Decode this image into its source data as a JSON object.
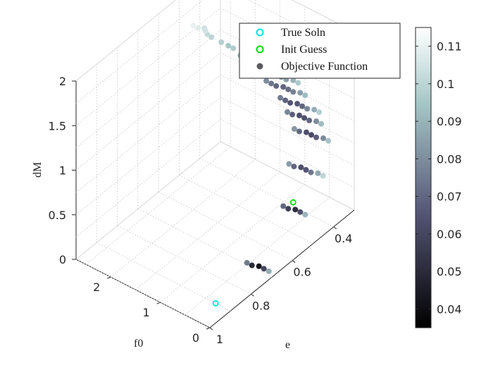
{
  "chart_data": {
    "type": "scatter",
    "projection": "3d",
    "title": "",
    "axes": {
      "x": {
        "label": "e",
        "lim": [
          0.3,
          1.0
        ],
        "ticks": [
          0.4,
          0.6,
          0.8,
          1
        ],
        "tick_labels": [
          "0.4",
          "0.6",
          "0.8",
          "1"
        ],
        "direction": "reversed"
      },
      "y": {
        "label": "f0",
        "lim": [
          0,
          2.7
        ],
        "ticks": [
          0,
          1,
          2
        ],
        "tick_labels": [
          "0",
          "1",
          "2"
        ]
      },
      "z": {
        "label": "dM",
        "lim": [
          0,
          2
        ],
        "ticks": [
          0,
          0.5,
          1,
          1.5,
          2
        ],
        "tick_labels": [
          "0",
          "0.5",
          "1",
          "1.5",
          "2"
        ]
      }
    },
    "grid": "on (dotted)",
    "legend": {
      "placement": "top-right",
      "entries": [
        {
          "label": "True Soln",
          "marker": "open-circle",
          "color": "#00e5e5"
        },
        {
          "label": "Init Guess",
          "marker": "open-circle",
          "color": "#00dd00"
        },
        {
          "label": "Objective Function",
          "marker": "filled-circle",
          "color": "#5a5a60"
        }
      ]
    },
    "colorbar": {
      "colormap": "bone",
      "range": [
        0.035,
        0.115
      ],
      "ticks": [
        0.04,
        0.05,
        0.06,
        0.07,
        0.08,
        0.09,
        0.1,
        0.11
      ],
      "tick_labels": [
        "0.04",
        "0.05",
        "0.06",
        "0.07",
        "0.08",
        "0.09",
        "0.1",
        "0.11"
      ]
    },
    "true_solution": {
      "e": 0.9,
      "f0": 0.3,
      "dM": 0
    },
    "init_guess": {
      "e": 0.5,
      "f0": 0.4,
      "dM": 0.35
    },
    "objective_function": {
      "description": "Sampled objective values shown as colored points; bands at discrete e values, dM increasing with decreasing e.",
      "points": [
        {
          "e": 0.48,
          "f0": 2.5,
          "dM": 1.7,
          "v": 0.11
        },
        {
          "e": 0.48,
          "f0": 2.4,
          "dM": 1.7,
          "v": 0.108
        },
        {
          "e": 0.47,
          "f0": 2.3,
          "dM": 1.68,
          "v": 0.105
        },
        {
          "e": 0.46,
          "f0": 2.3,
          "dM": 1.62,
          "v": 0.102
        },
        {
          "e": 0.45,
          "f0": 2.4,
          "dM": 1.64,
          "v": 0.104
        },
        {
          "e": 0.44,
          "f0": 2.3,
          "dM": 1.55,
          "v": 0.1
        },
        {
          "e": 0.44,
          "f0": 2.1,
          "dM": 1.55,
          "v": 0.098
        },
        {
          "e": 0.43,
          "f0": 2.0,
          "dM": 1.52,
          "v": 0.095
        },
        {
          "e": 0.43,
          "f0": 1.9,
          "dM": 1.52,
          "v": 0.097
        },
        {
          "e": 0.42,
          "f0": 1.8,
          "dM": 1.45,
          "v": 0.09
        },
        {
          "e": 0.42,
          "f0": 1.7,
          "dM": 1.45,
          "v": 0.088
        },
        {
          "e": 0.41,
          "f0": 1.6,
          "dM": 1.45,
          "v": 0.086
        },
        {
          "e": 0.41,
          "f0": 1.5,
          "dM": 1.45,
          "v": 0.084
        },
        {
          "e": 0.4,
          "f0": 1.4,
          "dM": 1.45,
          "v": 0.086
        },
        {
          "e": 0.4,
          "f0": 1.3,
          "dM": 1.45,
          "v": 0.089
        },
        {
          "e": 0.4,
          "f0": 1.2,
          "dM": 1.45,
          "v": 0.093
        },
        {
          "e": 0.41,
          "f0": 1.5,
          "dM": 1.35,
          "v": 0.082
        },
        {
          "e": 0.4,
          "f0": 1.4,
          "dM": 1.35,
          "v": 0.079
        },
        {
          "e": 0.4,
          "f0": 1.3,
          "dM": 1.35,
          "v": 0.076
        },
        {
          "e": 0.39,
          "f0": 1.2,
          "dM": 1.35,
          "v": 0.078
        },
        {
          "e": 0.39,
          "f0": 1.1,
          "dM": 1.35,
          "v": 0.081
        },
        {
          "e": 0.39,
          "f0": 1.0,
          "dM": 1.35,
          "v": 0.085
        },
        {
          "e": 0.38,
          "f0": 0.9,
          "dM": 1.35,
          "v": 0.09
        },
        {
          "e": 0.38,
          "f0": 0.8,
          "dM": 1.35,
          "v": 0.096
        },
        {
          "e": 0.39,
          "f0": 1.4,
          "dM": 1.22,
          "v": 0.08
        },
        {
          "e": 0.39,
          "f0": 1.3,
          "dM": 1.22,
          "v": 0.074
        },
        {
          "e": 0.39,
          "f0": 1.2,
          "dM": 1.22,
          "v": 0.07
        },
        {
          "e": 0.38,
          "f0": 1.1,
          "dM": 1.22,
          "v": 0.069
        },
        {
          "e": 0.38,
          "f0": 1.0,
          "dM": 1.22,
          "v": 0.072
        },
        {
          "e": 0.38,
          "f0": 0.9,
          "dM": 1.22,
          "v": 0.077
        },
        {
          "e": 0.37,
          "f0": 0.8,
          "dM": 1.22,
          "v": 0.084
        },
        {
          "e": 0.37,
          "f0": 0.7,
          "dM": 1.22,
          "v": 0.092
        },
        {
          "e": 0.37,
          "f0": 1.2,
          "dM": 1.05,
          "v": 0.076
        },
        {
          "e": 0.37,
          "f0": 1.1,
          "dM": 1.05,
          "v": 0.069
        },
        {
          "e": 0.37,
          "f0": 1.0,
          "dM": 1.05,
          "v": 0.065
        },
        {
          "e": 0.36,
          "f0": 0.9,
          "dM": 1.05,
          "v": 0.066
        },
        {
          "e": 0.36,
          "f0": 0.8,
          "dM": 1.05,
          "v": 0.07
        },
        {
          "e": 0.36,
          "f0": 0.7,
          "dM": 1.05,
          "v": 0.078
        },
        {
          "e": 0.35,
          "f0": 0.6,
          "dM": 1.05,
          "v": 0.088
        },
        {
          "e": 0.35,
          "f0": 0.5,
          "dM": 1.05,
          "v": 0.098
        },
        {
          "e": 0.36,
          "f0": 1.1,
          "dM": 0.9,
          "v": 0.078
        },
        {
          "e": 0.36,
          "f0": 1.0,
          "dM": 0.9,
          "v": 0.068
        },
        {
          "e": 0.35,
          "f0": 0.9,
          "dM": 0.9,
          "v": 0.063
        },
        {
          "e": 0.35,
          "f0": 0.8,
          "dM": 0.9,
          "v": 0.064
        },
        {
          "e": 0.35,
          "f0": 0.7,
          "dM": 0.9,
          "v": 0.07
        },
        {
          "e": 0.34,
          "f0": 0.6,
          "dM": 0.9,
          "v": 0.08
        },
        {
          "e": 0.34,
          "f0": 0.5,
          "dM": 0.9,
          "v": 0.092
        },
        {
          "e": 0.35,
          "f0": 1.0,
          "dM": 0.72,
          "v": 0.082
        },
        {
          "e": 0.35,
          "f0": 0.9,
          "dM": 0.72,
          "v": 0.07
        },
        {
          "e": 0.34,
          "f0": 0.8,
          "dM": 0.72,
          "v": 0.063
        },
        {
          "e": 0.34,
          "f0": 0.7,
          "dM": 0.72,
          "v": 0.062
        },
        {
          "e": 0.34,
          "f0": 0.6,
          "dM": 0.72,
          "v": 0.068
        },
        {
          "e": 0.33,
          "f0": 0.5,
          "dM": 0.72,
          "v": 0.079
        },
        {
          "e": 0.33,
          "f0": 0.4,
          "dM": 0.72,
          "v": 0.094
        },
        {
          "e": 0.4,
          "f0": 0.9,
          "dM": 0.45,
          "v": 0.084
        },
        {
          "e": 0.4,
          "f0": 0.8,
          "dM": 0.45,
          "v": 0.07
        },
        {
          "e": 0.39,
          "f0": 0.7,
          "dM": 0.45,
          "v": 0.063
        },
        {
          "e": 0.39,
          "f0": 0.6,
          "dM": 0.45,
          "v": 0.065
        },
        {
          "e": 0.39,
          "f0": 0.5,
          "dM": 0.45,
          "v": 0.074
        },
        {
          "e": 0.38,
          "f0": 0.4,
          "dM": 0.45,
          "v": 0.087
        },
        {
          "e": 0.38,
          "f0": 0.3,
          "dM": 0.45,
          "v": 0.1
        },
        {
          "e": 0.5,
          "f0": 0.6,
          "dM": 0.25,
          "v": 0.07
        },
        {
          "e": 0.5,
          "f0": 0.5,
          "dM": 0.25,
          "v": 0.058
        },
        {
          "e": 0.49,
          "f0": 0.4,
          "dM": 0.25,
          "v": 0.052
        },
        {
          "e": 0.49,
          "f0": 0.3,
          "dM": 0.25,
          "v": 0.063
        },
        {
          "e": 0.49,
          "f0": 0.2,
          "dM": 0.25,
          "v": 0.09
        },
        {
          "e": 0.7,
          "f0": 0.5,
          "dM": 0.02,
          "v": 0.075
        },
        {
          "e": 0.7,
          "f0": 0.4,
          "dM": 0.02,
          "v": 0.05
        },
        {
          "e": 0.69,
          "f0": 0.3,
          "dM": 0.02,
          "v": 0.042
        },
        {
          "e": 0.69,
          "f0": 0.2,
          "dM": 0.02,
          "v": 0.06
        },
        {
          "e": 0.69,
          "f0": 0.1,
          "dM": 0.02,
          "v": 0.088
        }
      ]
    }
  }
}
